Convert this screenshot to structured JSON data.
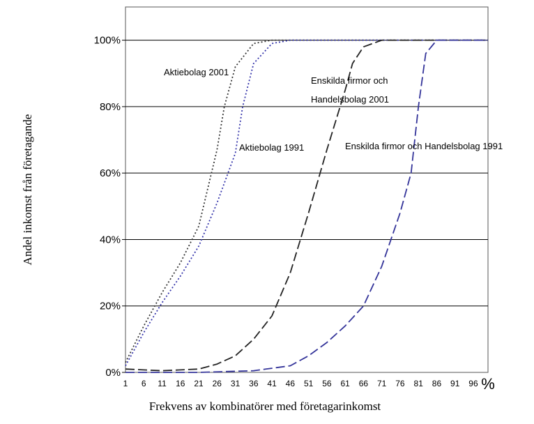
{
  "chart_data": {
    "type": "line",
    "title": "",
    "xlabel": "Frekvens av kombinatörer med företagarinkomst",
    "ylabel": "Andel inkomst från företagande",
    "x_unit": "%",
    "x_ticks": [
      1,
      6,
      11,
      16,
      21,
      26,
      31,
      36,
      41,
      46,
      51,
      56,
      61,
      66,
      71,
      76,
      81,
      86,
      91,
      96
    ],
    "y_ticks": [
      "0%",
      "20%",
      "40%",
      "60%",
      "80%",
      "100%"
    ],
    "xlim": [
      1,
      100
    ],
    "ylim": [
      0,
      1.1
    ],
    "grid": "horizontal",
    "legend": "none",
    "series": [
      {
        "name": "Aktiebolag 2001",
        "color": "#333333",
        "style": "dotted",
        "x": [
          1,
          6,
          11,
          16,
          21,
          26,
          28,
          31,
          36,
          41,
          46,
          51,
          61,
          71,
          81,
          91,
          100
        ],
        "y": [
          0.03,
          0.14,
          0.24,
          0.33,
          0.44,
          0.67,
          0.8,
          0.92,
          0.99,
          1.0,
          1.0,
          1.0,
          1.0,
          1.0,
          1.0,
          1.0,
          1.0
        ]
      },
      {
        "name": "Aktiebolag 1991",
        "color": "#3333aa",
        "style": "dotted",
        "x": [
          1,
          6,
          11,
          16,
          21,
          26,
          31,
          33,
          36,
          41,
          46,
          51,
          61,
          71,
          81,
          91,
          100
        ],
        "y": [
          0.02,
          0.12,
          0.21,
          0.29,
          0.38,
          0.51,
          0.66,
          0.8,
          0.93,
          0.99,
          1.0,
          1.0,
          1.0,
          1.0,
          1.0,
          1.0,
          1.0
        ]
      },
      {
        "name": "Enskilda firmor och Handelsbolag 2001",
        "color": "#222222",
        "style": "dashed",
        "x": [
          1,
          11,
          21,
          26,
          31,
          36,
          41,
          46,
          51,
          56,
          61,
          63,
          66,
          71,
          76,
          81,
          91,
          100
        ],
        "y": [
          0.01,
          0.005,
          0.01,
          0.025,
          0.05,
          0.1,
          0.17,
          0.3,
          0.48,
          0.67,
          0.85,
          0.93,
          0.98,
          1.0,
          1.0,
          1.0,
          1.0,
          1.0
        ]
      },
      {
        "name": "Enskilda firmor och Handelsbolag 1991",
        "color": "#333399",
        "style": "dashed",
        "x": [
          1,
          21,
          36,
          46,
          51,
          56,
          61,
          66,
          71,
          76,
          79,
          81,
          83,
          86,
          91,
          100
        ],
        "y": [
          0.0,
          0.0,
          0.005,
          0.02,
          0.05,
          0.09,
          0.14,
          0.2,
          0.32,
          0.48,
          0.6,
          0.8,
          0.96,
          1.0,
          1.0,
          1.0
        ]
      }
    ],
    "annotations": [
      {
        "text": "Aktiebolag 2001",
        "series": 0
      },
      {
        "text": "Aktiebolag 1991",
        "series": 1
      },
      {
        "text": "Enskilda firmor och",
        "series": 2
      },
      {
        "text": "Handelsbolag 2001",
        "series": 2
      },
      {
        "text": "Enskilda firmor och Handelsbolag 1991",
        "series": 3
      }
    ]
  }
}
